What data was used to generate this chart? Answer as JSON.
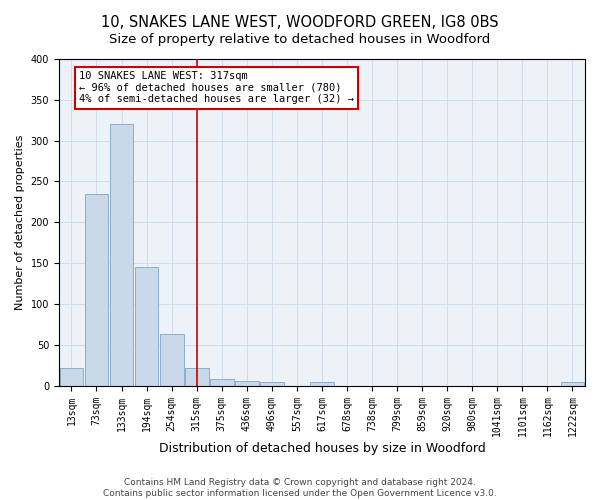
{
  "title": "10, SNAKES LANE WEST, WOODFORD GREEN, IG8 0BS",
  "subtitle": "Size of property relative to detached houses in Woodford",
  "xlabel": "Distribution of detached houses by size in Woodford",
  "ylabel": "Number of detached properties",
  "footnote": "Contains HM Land Registry data © Crown copyright and database right 2024.\nContains public sector information licensed under the Open Government Licence v3.0.",
  "bar_labels": [
    "13sqm",
    "73sqm",
    "133sqm",
    "194sqm",
    "254sqm",
    "315sqm",
    "375sqm",
    "436sqm",
    "496sqm",
    "557sqm",
    "617sqm",
    "678sqm",
    "738sqm",
    "799sqm",
    "859sqm",
    "920sqm",
    "980sqm",
    "1041sqm",
    "1101sqm",
    "1162sqm",
    "1222sqm"
  ],
  "bar_heights": [
    22,
    235,
    320,
    145,
    63,
    21,
    8,
    6,
    5,
    0,
    5,
    0,
    0,
    0,
    0,
    0,
    0,
    0,
    0,
    0,
    4
  ],
  "bar_color": "#c9d9ea",
  "bar_edge_color": "#8aafc8",
  "ylim": [
    0,
    400
  ],
  "yticks": [
    0,
    50,
    100,
    150,
    200,
    250,
    300,
    350,
    400
  ],
  "vline_x_index": 5.0,
  "annotation_box_text": "10 SNAKES LANE WEST: 317sqm\n← 96% of detached houses are smaller (780)\n4% of semi-detached houses are larger (32) →",
  "annotation_box_color": "#cc0000",
  "grid_color": "#ccd8e8",
  "background_color": "#edf2f8",
  "title_fontsize": 10.5,
  "tick_fontsize": 7,
  "xlabel_fontsize": 9,
  "ylabel_fontsize": 8,
  "annotation_fontsize": 7.5,
  "footnote_fontsize": 6.5
}
